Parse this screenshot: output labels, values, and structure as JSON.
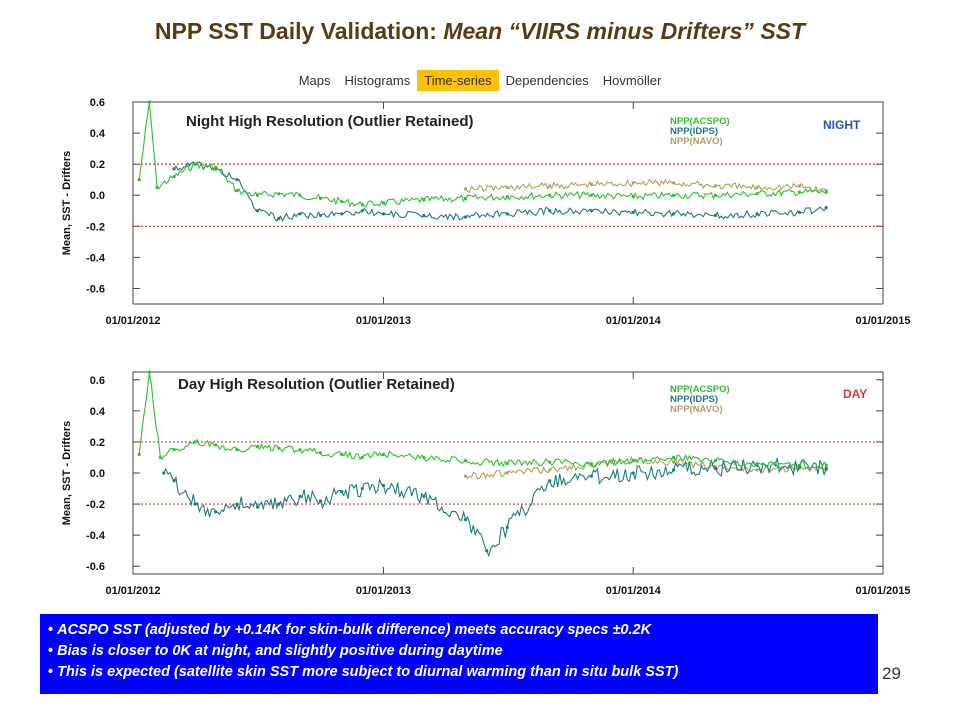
{
  "slide": {
    "title_lead": "NPP SST Daily Validation: ",
    "title_italic": "Mean “VIIRS minus Drifters” SST",
    "page_number": "29"
  },
  "tabs": [
    {
      "label": "Maps",
      "active": false
    },
    {
      "label": "Histograms",
      "active": false
    },
    {
      "label": "Time-series",
      "active": true
    },
    {
      "label": "Dependencies",
      "active": false
    },
    {
      "label": "Hovmöller",
      "active": false
    }
  ],
  "colors": {
    "acspo": "#2fc02f",
    "idps": "#1f7a80",
    "navo": "#b0a060",
    "ref_line": "#e03030",
    "tag_night": "#2255cc",
    "tag_day": "#e03030"
  },
  "bullets": [
    "ACSPO SST (adjusted by +0.14K for skin-bulk difference) meets accuracy specs ±0.2K",
    "Bias is closer to 0K at night, and slightly positive during daytime",
    "This is expected (satellite skin SST more subject to diurnal warming than in situ bulk SST)"
  ],
  "chart_data": [
    {
      "type": "line",
      "panel_tag": "NIGHT",
      "title": "Night High Resolution (Outlier Retained)",
      "ylabel": "Mean,  SST - Drifters",
      "x_ticks": [
        "01/01/2012",
        "01/01/2013",
        "01/01/2014",
        "01/01/2015"
      ],
      "xlim": [
        "2012-01-01",
        "2015-01-01"
      ],
      "ylim": [
        -0.7,
        0.6
      ],
      "y_ticks": [
        -0.6,
        -0.4,
        -0.2,
        0.0,
        0.2,
        0.4,
        0.6
      ],
      "y_tick_labels": [
        "-0.6",
        "-0.4",
        "-0.2",
        "0.0",
        "0.2",
        "0.4",
        "0.6"
      ],
      "ref_lines": [
        0.2,
        -0.2
      ],
      "legend": [
        "NPP(ACSPO)",
        "NPP(IDPS)",
        "NPP(NAVO)"
      ],
      "series": [
        {
          "name": "NPP(ACSPO)",
          "x": [
            "2012-01-10",
            "2012-01-25",
            "2012-02-05",
            "2012-03-01",
            "2012-04-01",
            "2012-05-01",
            "2012-06-01",
            "2012-07-01",
            "2012-08-01",
            "2012-09-01",
            "2012-10-01",
            "2012-11-01",
            "2012-12-01",
            "2013-01-01",
            "2013-03-01",
            "2013-05-01",
            "2013-07-01",
            "2013-09-01",
            "2013-11-01",
            "2014-01-01",
            "2014-03-01",
            "2014-05-01",
            "2014-07-01",
            "2014-09-01",
            "2014-10-10"
          ],
          "values": [
            0.1,
            0.6,
            0.05,
            0.12,
            0.2,
            0.18,
            0.03,
            0.0,
            0.01,
            0.0,
            -0.02,
            -0.04,
            -0.06,
            -0.05,
            -0.03,
            -0.02,
            -0.01,
            0.0,
            0.0,
            -0.01,
            0.0,
            0.0,
            0.01,
            0.02,
            0.02
          ]
        },
        {
          "name": "NPP(IDPS)",
          "x": [
            "2012-03-01",
            "2012-04-01",
            "2012-05-01",
            "2012-06-01",
            "2012-07-01",
            "2012-08-01",
            "2012-09-01",
            "2012-10-01",
            "2012-11-01",
            "2012-12-01",
            "2013-01-01",
            "2013-03-01",
            "2013-05-01",
            "2013-07-01",
            "2013-09-01",
            "2013-11-01",
            "2014-01-01",
            "2014-03-01",
            "2014-05-01",
            "2014-07-01",
            "2014-09-01",
            "2014-10-10"
          ],
          "values": [
            0.17,
            0.2,
            0.17,
            0.1,
            -0.1,
            -0.15,
            -0.12,
            -0.13,
            -0.12,
            -0.1,
            -0.12,
            -0.13,
            -0.14,
            -0.12,
            -0.1,
            -0.1,
            -0.11,
            -0.12,
            -0.13,
            -0.12,
            -0.11,
            -0.08
          ]
        },
        {
          "name": "NPP(NAVO)",
          "x": [
            "2013-05-01",
            "2013-07-01",
            "2013-09-01",
            "2013-11-01",
            "2014-01-01",
            "2014-03-01",
            "2014-05-01",
            "2014-07-01",
            "2014-09-01",
            "2014-10-10"
          ],
          "values": [
            0.04,
            0.05,
            0.06,
            0.07,
            0.08,
            0.08,
            0.06,
            0.05,
            0.06,
            0.03
          ]
        }
      ]
    },
    {
      "type": "line",
      "panel_tag": "DAY",
      "title": "Day High Resolution (Outlier Retained)",
      "ylabel": "Mean,  SST - Drifters",
      "x_ticks": [
        "01/01/2012",
        "01/01/2013",
        "01/01/2014",
        "01/01/2015"
      ],
      "xlim": [
        "2012-01-01",
        "2015-01-01"
      ],
      "ylim": [
        -0.65,
        0.65
      ],
      "y_ticks": [
        -0.6,
        -0.4,
        -0.2,
        0.0,
        0.2,
        0.4,
        0.6
      ],
      "y_tick_labels": [
        "-0.6",
        "-0.4",
        "-0.2",
        "0.0",
        "0.2",
        "0.4",
        "0.6"
      ],
      "ref_lines": [
        0.2,
        -0.2
      ],
      "legend": [
        "NPP(ACSPO)",
        "NPP(IDPS)",
        "NPP(NAVO)"
      ],
      "series": [
        {
          "name": "NPP(ACSPO)",
          "x": [
            "2012-01-10",
            "2012-01-25",
            "2012-02-10",
            "2012-03-01",
            "2012-04-01",
            "2012-05-01",
            "2012-06-01",
            "2012-07-01",
            "2012-08-01",
            "2012-09-01",
            "2012-10-01",
            "2012-11-01",
            "2012-12-01",
            "2013-01-01",
            "2013-03-01",
            "2013-05-01",
            "2013-07-01",
            "2013-09-01",
            "2013-11-01",
            "2014-01-01",
            "2014-03-01",
            "2014-05-01",
            "2014-07-01",
            "2014-09-01",
            "2014-10-10"
          ],
          "values": [
            0.12,
            0.65,
            0.1,
            0.15,
            0.2,
            0.18,
            0.15,
            0.17,
            0.16,
            0.15,
            0.13,
            0.12,
            0.1,
            0.12,
            0.1,
            0.08,
            0.06,
            0.07,
            0.06,
            0.08,
            0.1,
            0.08,
            0.06,
            0.05,
            0.05
          ]
        },
        {
          "name": "NPP(IDPS)",
          "x": [
            "2012-02-15",
            "2012-03-01",
            "2012-04-01",
            "2012-05-01",
            "2012-06-01",
            "2012-07-01",
            "2012-08-01",
            "2012-09-01",
            "2012-10-01",
            "2012-11-01",
            "2012-12-01",
            "2013-01-01",
            "2013-03-01",
            "2013-05-01",
            "2013-06-01",
            "2013-07-01",
            "2013-09-01",
            "2013-11-01",
            "2014-01-01",
            "2014-03-01",
            "2014-05-01",
            "2014-07-01",
            "2014-09-01",
            "2014-10-10"
          ],
          "values": [
            0.0,
            -0.05,
            -0.2,
            -0.25,
            -0.2,
            -0.22,
            -0.2,
            -0.15,
            -0.18,
            -0.12,
            -0.1,
            -0.08,
            -0.15,
            -0.3,
            -0.5,
            -0.35,
            -0.05,
            -0.02,
            0.0,
            0.02,
            0.03,
            0.05,
            0.04,
            0.03
          ]
        },
        {
          "name": "NPP(NAVO)",
          "x": [
            "2013-05-01",
            "2013-07-01",
            "2013-09-01",
            "2013-11-01",
            "2014-01-01",
            "2014-03-01",
            "2014-05-01",
            "2014-07-01",
            "2014-09-01",
            "2014-10-10"
          ],
          "values": [
            -0.02,
            0.0,
            0.02,
            0.05,
            0.08,
            0.07,
            0.04,
            0.02,
            0.03,
            0.02
          ]
        }
      ]
    }
  ]
}
